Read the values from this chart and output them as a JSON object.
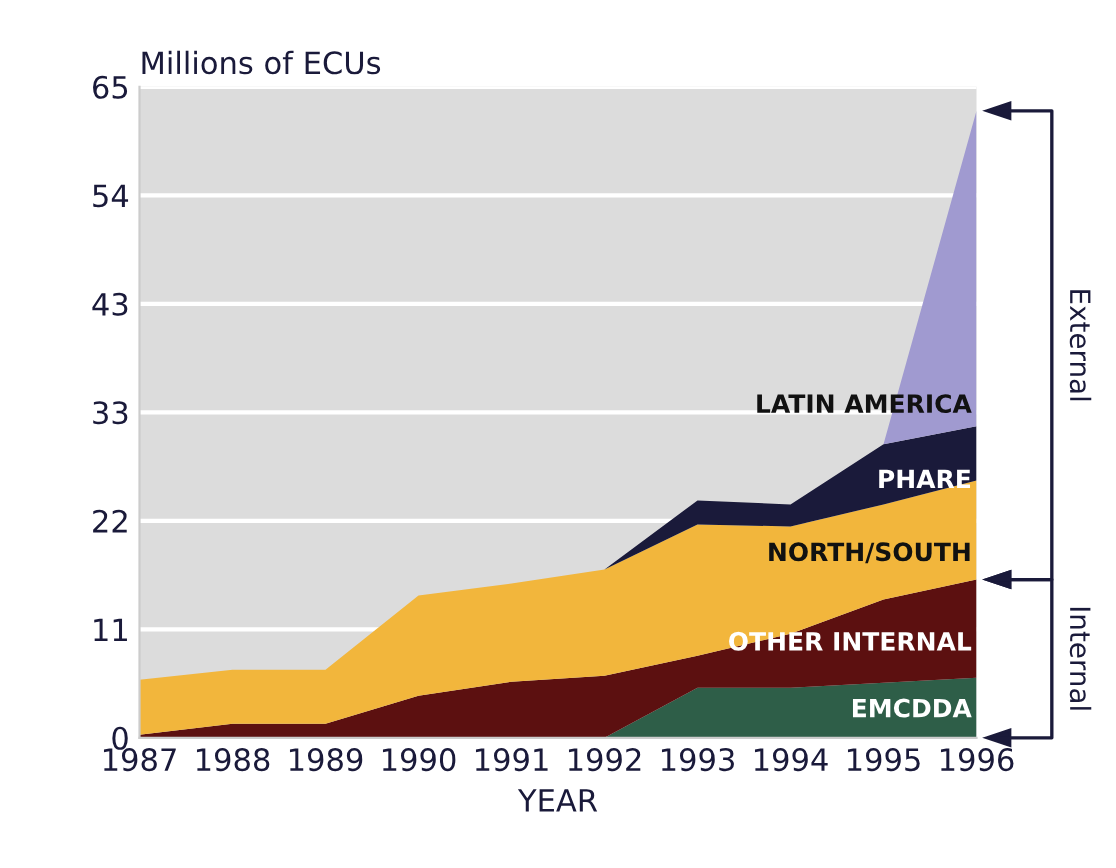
{
  "chart_data": {
    "type": "area",
    "stacked": true,
    "ylabel": "Millions of ECUs",
    "xlabel": "YEAR",
    "x": [
      1987,
      1988,
      1989,
      1990,
      1991,
      1992,
      1993,
      1994,
      1995,
      1996
    ],
    "series": [
      {
        "name": "EMCDDA",
        "color": "#2e5e48",
        "values": [
          0,
          0,
          0,
          0,
          0,
          0,
          5,
          5,
          5.5,
          6
        ]
      },
      {
        "name": "OTHER INTERNAL",
        "color": "#5c1010",
        "values": [
          0.3,
          1.4,
          1.4,
          4.2,
          5.6,
          6.2,
          3.2,
          5.4,
          8.3,
          9.8
        ]
      },
      {
        "name": "NORTH/SOUTH",
        "color": "#f2b63c",
        "values": [
          5.5,
          5.4,
          5.4,
          10,
          9.8,
          10.6,
          13.1,
          10.7,
          9.5,
          9.9
        ]
      },
      {
        "name": "PHARE",
        "color": "#1a1a3a",
        "values": [
          0,
          0,
          0,
          0,
          0,
          0,
          2.4,
          2.2,
          6,
          5.4
        ]
      },
      {
        "name": "LATIN AMERICA",
        "color": "#a09ad0",
        "values": [
          0,
          0,
          0,
          0,
          0,
          0,
          0,
          0,
          0,
          31.5
        ]
      }
    ],
    "xlim": [
      1987,
      1996
    ],
    "xticks": [
      1987,
      1988,
      1989,
      1990,
      1991,
      1992,
      1993,
      1994,
      1995,
      1996
    ],
    "ylim": [
      0,
      65
    ],
    "yticks": [
      0,
      {
        "value": 10.833,
        "label": "11"
      },
      {
        "value": 21.667,
        "label": "22"
      },
      {
        "value": 32.5,
        "label": "33"
      },
      {
        "value": 43.333,
        "label": "43"
      },
      {
        "value": 54.167,
        "label": "54"
      },
      65
    ],
    "grid": "y",
    "legend": false,
    "annotations": [
      "External",
      "Internal"
    ]
  }
}
